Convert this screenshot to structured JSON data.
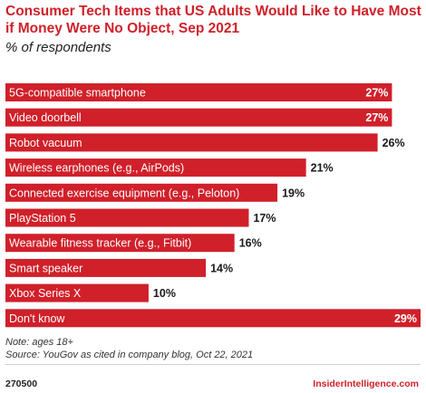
{
  "header": {
    "title": "Consumer Tech Items that US Adults Would Like to Have Most if Money Were No Object, Sep 2021",
    "subtitle": "% of respondents"
  },
  "footer": {
    "note": "Note: ages 18+",
    "source": "Source: YouGov as cited in company blog, Oct 22, 2021",
    "chart_id": "270500",
    "brand": "InsiderIntelligence.com"
  },
  "colors": {
    "bar": "#d0202a",
    "title": "#d0202a",
    "bar_text": "#ffffff",
    "value_text_outside": "#1a1a1a"
  },
  "chart_data": {
    "type": "bar",
    "orientation": "horizontal",
    "title": "Consumer Tech Items that US Adults Would Like to Have Most if Money Were No Object, Sep 2021",
    "subtitle": "% of respondents",
    "categories": [
      "5G-compatible smartphone",
      "Video doorbell",
      "Robot vacuum",
      "Wireless earphones (e.g., AirPods)",
      "Connected exercise equipment (e.g., Peloton)",
      "PlayStation 5",
      "Wearable fitness tracker (e.g., Fitbit)",
      "Smart speaker",
      "Xbox Series X",
      "Don't know"
    ],
    "values": [
      27,
      27,
      26,
      21,
      19,
      17,
      16,
      14,
      10,
      29
    ],
    "value_labels": [
      "27%",
      "27%",
      "26%",
      "21%",
      "19%",
      "17%",
      "16%",
      "14%",
      "10%",
      "29%"
    ],
    "xlim": [
      0,
      29
    ],
    "grid": false,
    "legend": "none"
  }
}
